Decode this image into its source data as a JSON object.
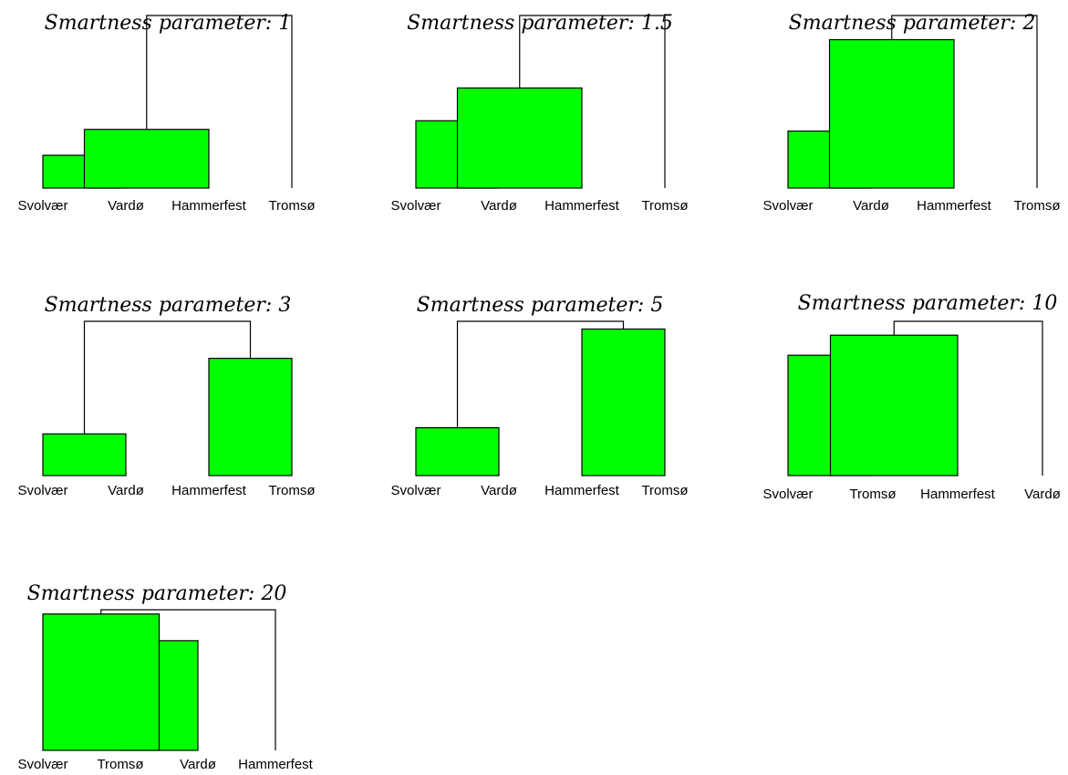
{
  "colors": {
    "cluster_fill": "#00ff00",
    "stroke": "#000000",
    "background": "#ffffff"
  },
  "panels": [
    {
      "title": "Smartness parameter: 1",
      "leaves": [
        "Svolvær",
        "Vardø",
        "Hammerfest",
        "Tromsø"
      ],
      "merges": [
        {
          "a": 0,
          "b": 1,
          "height": 0.19,
          "filled": true
        },
        {
          "a": 4,
          "b": 2,
          "height": 0.34,
          "filled": true
        },
        {
          "a": 5,
          "b": 3,
          "height": 1.0,
          "filled": false
        }
      ]
    },
    {
      "title": "Smartness parameter: 1.5",
      "leaves": [
        "Svolvær",
        "Vardø",
        "Hammerfest",
        "Tromsø"
      ],
      "merges": [
        {
          "a": 0,
          "b": 1,
          "height": 0.39,
          "filled": true
        },
        {
          "a": 4,
          "b": 2,
          "height": 0.58,
          "filled": true
        },
        {
          "a": 5,
          "b": 3,
          "height": 1.0,
          "filled": false
        }
      ]
    },
    {
      "title": "Smartness parameter: 2",
      "leaves": [
        "Svolvær",
        "Vardø",
        "Hammerfest",
        "Tromsø"
      ],
      "merges": [
        {
          "a": 0,
          "b": 1,
          "height": 0.33,
          "filled": true
        },
        {
          "a": 4,
          "b": 2,
          "height": 0.86,
          "filled": true
        },
        {
          "a": 5,
          "b": 3,
          "height": 1.0,
          "filled": false
        }
      ]
    },
    {
      "title": "Smartness parameter: 3",
      "leaves": [
        "Svolvær",
        "Vardø",
        "Hammerfest",
        "Tromsø"
      ],
      "merges": [
        {
          "a": 0,
          "b": 1,
          "height": 0.27,
          "filled": true
        },
        {
          "a": 2,
          "b": 3,
          "height": 0.76,
          "filled": true
        },
        {
          "a": 4,
          "b": 5,
          "height": 1.0,
          "filled": false
        }
      ]
    },
    {
      "title": "Smartness parameter: 5",
      "leaves": [
        "Svolvær",
        "Vardø",
        "Hammerfest",
        "Tromsø"
      ],
      "merges": [
        {
          "a": 0,
          "b": 1,
          "height": 0.31,
          "filled": true
        },
        {
          "a": 2,
          "b": 3,
          "height": 0.95,
          "filled": true
        },
        {
          "a": 4,
          "b": 5,
          "height": 1.0,
          "filled": false
        }
      ]
    },
    {
      "title": "Smartness parameter: 10",
      "leaves": [
        "Svolvær",
        "Tromsø",
        "Hammerfest",
        "Vardø"
      ],
      "merges": [
        {
          "a": 0,
          "b": 1,
          "height": 0.78,
          "filled": true
        },
        {
          "a": 4,
          "b": 2,
          "height": 0.91,
          "filled": true
        },
        {
          "a": 5,
          "b": 3,
          "height": 1.0,
          "filled": false
        }
      ]
    },
    {
      "title": "Smartness parameter: 20",
      "leaves": [
        "Svolvær",
        "Tromsø",
        "Vardø",
        "Hammerfest"
      ],
      "merges": [
        {
          "a": 1,
          "b": 2,
          "height": 0.78,
          "filled": true
        },
        {
          "a": 0,
          "b": 4,
          "height": 0.97,
          "filled": true
        },
        {
          "a": 5,
          "b": 3,
          "height": 1.0,
          "filled": false
        }
      ]
    }
  ]
}
